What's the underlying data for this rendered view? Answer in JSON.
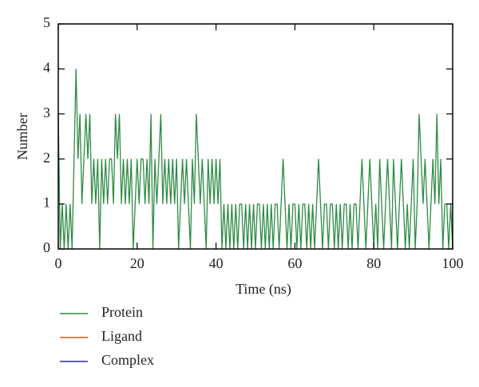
{
  "chart_data": {
    "type": "line",
    "xlabel": "Time (ns)",
    "ylabel": "Number",
    "xlim": [
      0,
      100
    ],
    "xticks": [
      0,
      20,
      40,
      60,
      80,
      100
    ],
    "ylim": [
      0,
      5
    ],
    "yticks": [
      0,
      1,
      2,
      3,
      4,
      5
    ],
    "legend": "bottom-left",
    "x": [
      0,
      0.5,
      1,
      1.5,
      2,
      2.5,
      3,
      3.5,
      4,
      4.5,
      5,
      5.5,
      6,
      6.5,
      7,
      7.5,
      8,
      8.5,
      9,
      9.5,
      10,
      10.5,
      11,
      11.5,
      12,
      12.5,
      13,
      13.5,
      14,
      14.5,
      15,
      15.5,
      16,
      16.5,
      17,
      17.5,
      18,
      18.5,
      19,
      19.5,
      20,
      20.5,
      21,
      21.5,
      22,
      22.5,
      23,
      23.5,
      24,
      24.5,
      25,
      25.5,
      26,
      26.5,
      27,
      27.5,
      28,
      28.5,
      29,
      29.5,
      30,
      30.5,
      31,
      31.5,
      32,
      32.5,
      33,
      33.5,
      34,
      34.5,
      35,
      35.5,
      36,
      36.5,
      37,
      37.5,
      38,
      38.5,
      39,
      39.5,
      40,
      40.5,
      41,
      41.5,
      42,
      42.5,
      43,
      43.5,
      44,
      44.5,
      45,
      45.5,
      46,
      46.5,
      47,
      47.5,
      48,
      48.5,
      49,
      49.5,
      50,
      50.5,
      51,
      51.5,
      52,
      52.5,
      53,
      53.5,
      54,
      54.5,
      55,
      55.5,
      56,
      56.5,
      57,
      57.5,
      58,
      58.5,
      59,
      59.5,
      60,
      60.5,
      61,
      61.5,
      62,
      62.5,
      63,
      63.5,
      64,
      64.5,
      65,
      65.5,
      66,
      66.5,
      67,
      67.5,
      68,
      68.5,
      69,
      69.5,
      70,
      70.5,
      71,
      71.5,
      72,
      72.5,
      73,
      73.5,
      74,
      74.5,
      75,
      75.5,
      76,
      76.5,
      77,
      77.5,
      78,
      78.5,
      79,
      79.5,
      80,
      80.5,
      81,
      81.5,
      82,
      82.5,
      83,
      83.5,
      84,
      84.5,
      85,
      85.5,
      86,
      86.5,
      87,
      87.5,
      88,
      88.5,
      89,
      89.5,
      90,
      90.5,
      91,
      91.5,
      92,
      92.5,
      93,
      93.5,
      94,
      94.5,
      95,
      95.5,
      96,
      96.5,
      97,
      97.5,
      98,
      98.5,
      99,
      99.5,
      100
    ],
    "series": [
      {
        "name": "Protein",
        "color": "#2e8b44",
        "values": [
          3,
          0,
          1,
          0,
          1,
          0,
          1,
          0,
          2,
          4,
          2,
          3,
          1,
          2,
          3,
          2,
          3,
          1,
          2,
          1,
          2,
          0,
          2,
          1,
          2,
          1,
          2,
          2,
          1,
          3,
          2,
          3,
          1,
          2,
          1,
          2,
          1,
          2,
          0,
          1,
          2,
          1,
          2,
          2,
          1,
          2,
          1,
          3,
          0,
          2,
          1,
          2,
          3,
          1,
          2,
          1,
          2,
          1,
          2,
          1,
          2,
          0,
          1,
          2,
          1,
          2,
          1,
          0,
          2,
          1,
          3,
          2,
          1,
          2,
          1,
          0,
          2,
          1,
          2,
          1,
          2,
          1,
          2,
          0,
          1,
          0,
          1,
          0,
          1,
          0,
          1,
          0,
          1,
          1,
          0,
          1,
          0,
          1,
          0,
          1,
          0,
          1,
          1,
          0,
          1,
          0,
          1,
          0,
          1,
          0,
          1,
          1,
          0,
          1,
          2,
          1,
          0,
          1,
          0,
          1,
          1,
          0,
          1,
          0,
          1,
          1,
          0,
          1,
          0,
          1,
          0,
          1,
          2,
          1,
          0,
          1,
          1,
          0,
          1,
          1,
          0,
          1,
          0,
          1,
          0,
          1,
          1,
          0,
          1,
          0,
          1,
          1,
          0,
          1,
          2,
          1,
          0,
          1,
          2,
          1,
          0,
          1,
          0,
          2,
          1,
          0,
          1,
          2,
          1,
          0,
          2,
          1,
          0,
          1,
          2,
          1,
          0,
          1,
          0,
          1,
          2,
          0,
          1,
          3,
          2,
          1,
          2,
          1,
          0,
          1,
          2,
          1,
          3,
          1,
          2,
          0,
          1,
          1,
          0,
          1,
          0
        ]
      },
      {
        "name": "Ligand",
        "color": "#d9541e"
      },
      {
        "name": "Complex",
        "color": "#2c2f8f"
      }
    ]
  }
}
